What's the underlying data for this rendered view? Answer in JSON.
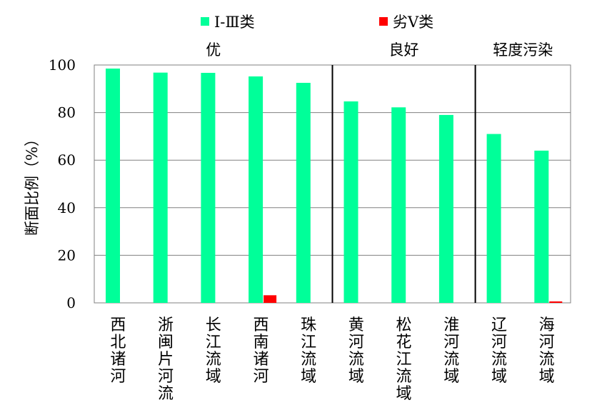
{
  "chart_data": {
    "type": "bar",
    "categories": [
      "西北诸河",
      "浙闽片河流",
      "长江流域",
      "西南诸河",
      "珠江流域",
      "黄河流域",
      "松花江流域",
      "淮河流域",
      "辽河流域",
      "海河流域"
    ],
    "series": [
      {
        "name": "Ⅰ-Ⅲ类",
        "color": "#00ff99",
        "values": [
          98.5,
          96.8,
          96.7,
          95.2,
          92.5,
          84.7,
          82.2,
          79.0,
          71.0,
          64.0
        ]
      },
      {
        "name": "劣Ⅴ类",
        "color": "#ff0000",
        "values": [
          0,
          0,
          0,
          3.2,
          0,
          0,
          0,
          0,
          0,
          0.6
        ]
      }
    ],
    "ylabel": "断面比例（%）",
    "ylim": [
      0,
      100
    ],
    "yticks": [
      0,
      20,
      40,
      60,
      80,
      100
    ],
    "grid": true,
    "legend_position": "top",
    "groups": [
      {
        "label": "优",
        "start": 0,
        "end": 4
      },
      {
        "label": "良好",
        "start": 5,
        "end": 7
      },
      {
        "label": "轻度污染",
        "start": 8,
        "end": 9
      }
    ]
  }
}
